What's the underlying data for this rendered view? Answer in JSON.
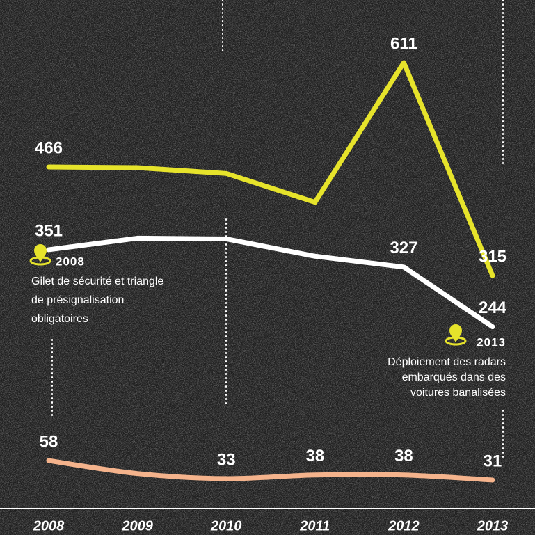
{
  "chart_data": {
    "type": "line",
    "categories": [
      "2008",
      "2009",
      "2010",
      "2011",
      "2012",
      "2013"
    ],
    "series": [
      {
        "color": "#e6e32b",
        "values": [
          466,
          465,
          457,
          417,
          611,
          315
        ],
        "value_labels": [
          "466",
          null,
          null,
          null,
          "611",
          "315"
        ]
      },
      {
        "color": "#ffffff",
        "values": [
          351,
          367,
          366,
          342,
          327,
          244
        ],
        "value_labels": [
          "351",
          null,
          null,
          null,
          "327",
          "244"
        ]
      },
      {
        "color": "#f4b38c",
        "values": [
          58,
          40,
          33,
          38,
          38,
          31
        ],
        "value_labels": [
          "58",
          null,
          "33",
          "38",
          "38",
          "31"
        ],
        "smooth": true
      }
    ],
    "annotations": [
      {
        "year": "2008",
        "lines": [
          "Gilet de sécurité et triangle",
          "de présignalisation",
          "obligatoires"
        ]
      },
      {
        "year": "2013",
        "lines": [
          "Déploiement des radars",
          "embarqués dans des",
          "voitures banalisées"
        ]
      }
    ]
  }
}
